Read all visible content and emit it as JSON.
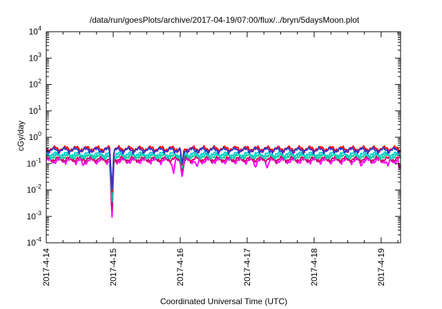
{
  "chart_data": {
    "type": "line",
    "title": "/data/run/goesPlots/archive/2017-04-19/07:00/flux/../bryn/5daysMoon.plot",
    "xlabel": "Coordinated Universal Time (UTC)",
    "ylabel": "cGy/day",
    "y_scale": "log",
    "ylim": [
      0.0001,
      10000
    ],
    "x_start": "2017-04-14",
    "x_end": "2017-04-19 07:00",
    "xlim_days": [
      0,
      5.29
    ],
    "x_ticks": [
      {
        "day": 0,
        "label": "2017-4-14"
      },
      {
        "day": 1,
        "label": "2017-4-15"
      },
      {
        "day": 2,
        "label": "2017-4-16"
      },
      {
        "day": 3,
        "label": "2017-4-17"
      },
      {
        "day": 4,
        "label": "2017-4-18"
      },
      {
        "day": 5,
        "label": "2017-4-19"
      }
    ],
    "y_ticks": [
      {
        "base": "10",
        "exp": "-4",
        "value": 0.0001
      },
      {
        "base": "10",
        "exp": "-3",
        "value": 0.001
      },
      {
        "base": "10",
        "exp": "-2",
        "value": 0.01
      },
      {
        "base": "10",
        "exp": "-1",
        "value": 0.1
      },
      {
        "base": "10",
        "exp": "0",
        "value": 1
      },
      {
        "base": "10",
        "exp": "1",
        "value": 10
      },
      {
        "base": "10",
        "exp": "2",
        "value": 100
      },
      {
        "base": "10",
        "exp": "3",
        "value": 1000
      },
      {
        "base": "10",
        "exp": "4",
        "value": 10000
      }
    ],
    "grid": false,
    "legend": "none",
    "series": [
      {
        "color": "#ff00ff",
        "base": 0.13,
        "dips": [
          [
            0.55,
            0.08
          ],
          [
            0.98,
            0.0006
          ],
          [
            1.9,
            0.04
          ],
          [
            2.03,
            0.03
          ],
          [
            2.25,
            0.07
          ],
          [
            3.12,
            0.07
          ],
          [
            3.3,
            0.07
          ],
          [
            4.7,
            0.08
          ],
          [
            5.1,
            0.08
          ],
          [
            5.28,
            0.06
          ]
        ]
      },
      {
        "color": "#cc0066",
        "base": 0.15,
        "dips": [
          [
            0.98,
            0.0012
          ],
          [
            2.03,
            0.05
          ]
        ]
      },
      {
        "color": "#00cc99",
        "base": 0.19,
        "dips": [
          [
            0.98,
            0.0025
          ],
          [
            2.03,
            0.06
          ]
        ]
      },
      {
        "color": "#00cccc",
        "base": 0.23,
        "dips": [
          [
            0.98,
            0.004
          ],
          [
            2.03,
            0.07
          ]
        ]
      },
      {
        "color": "#ff0000",
        "base": 0.37,
        "dips": [
          [
            0.98,
            0.006
          ],
          [
            2.03,
            0.08
          ]
        ]
      },
      {
        "color": "#3333cc",
        "base": 0.33,
        "dips": [
          [
            0.98,
            0.008
          ],
          [
            2.03,
            0.09
          ]
        ]
      }
    ]
  }
}
